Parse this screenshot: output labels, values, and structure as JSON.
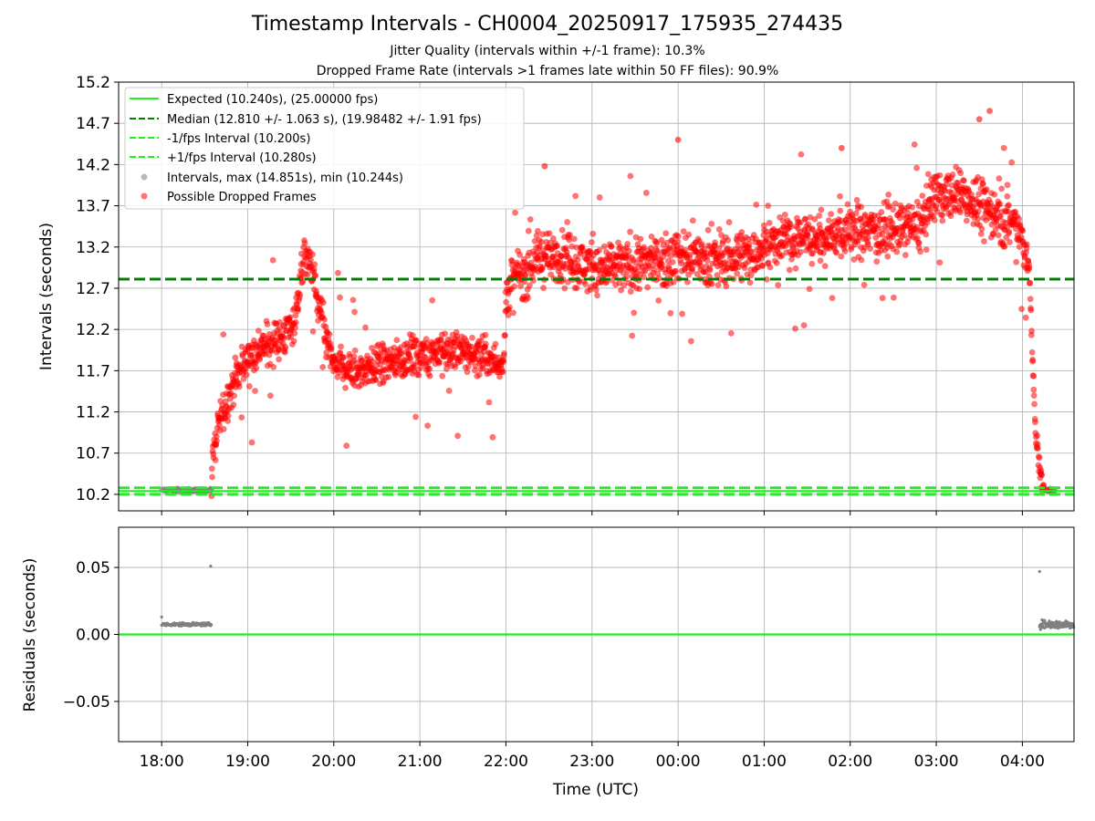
{
  "figure": {
    "title": "Timestamp Intervals - CH0004_20250917_175935_274435",
    "subtitle1": "Jitter Quality (intervals within +/-1 frame): 10.3%",
    "subtitle2": "Dropped Frame Rate (intervals >1 frames late within 50 FF files): 90.9%"
  },
  "chart_data": [
    {
      "type": "scatter",
      "panel": "intervals",
      "xlabel": "",
      "ylabel": "Intervals (seconds)",
      "xlim_hours": [
        17.5,
        28.6
      ],
      "ylim": [
        10.0,
        15.2
      ],
      "yticks": [
        "10.2",
        "10.7",
        "11.2",
        "11.7",
        "12.2",
        "12.7",
        "13.2",
        "13.7",
        "14.2",
        "14.7",
        "15.2"
      ],
      "grid": true,
      "legend_placement": "upper-left",
      "reference_lines": [
        {
          "name": "Expected (10.240s), (25.00000 fps)",
          "y": 10.24,
          "color": "#22ee22",
          "style": "solid"
        },
        {
          "name": "Median (12.810 +/- 1.063 s), (19.98482 +/- 1.91 fps)",
          "y": 12.81,
          "color": "#008000",
          "style": "dashed"
        },
        {
          "name": "-1/fps Interval (10.200s)",
          "y": 10.2,
          "color": "#22ee22",
          "style": "dashed"
        },
        {
          "name": "+1/fps Interval (10.280s)",
          "y": 10.28,
          "color": "#22ee22",
          "style": "dashed"
        }
      ],
      "series": [
        {
          "name": "Intervals, max (14.851s), min (10.244s)",
          "color": "#808080",
          "note": "normal intervals near 10.24 s",
          "segments": [
            {
              "x_start": 18.0,
              "x_end": 18.58,
              "y_mean": 10.25,
              "spread": 0.008
            },
            {
              "x_start": 28.28,
              "x_end": 28.38,
              "y_mean": 10.25,
              "spread": 0.008
            }
          ]
        },
        {
          "name": "Possible Dropped Frames",
          "color": "#ff0000",
          "trend_points": [
            [
              18.58,
              10.6
            ],
            [
              18.65,
              11.0
            ],
            [
              18.75,
              11.3
            ],
            [
              18.85,
              11.6
            ],
            [
              19.0,
              11.85
            ],
            [
              19.2,
              12.0
            ],
            [
              19.4,
              12.1
            ],
            [
              19.55,
              12.3
            ],
            [
              19.63,
              12.95
            ],
            [
              19.68,
              13.1
            ],
            [
              19.75,
              12.9
            ],
            [
              19.82,
              12.5
            ],
            [
              19.9,
              12.15
            ],
            [
              20.0,
              11.75
            ],
            [
              20.3,
              11.7
            ],
            [
              20.6,
              11.8
            ],
            [
              21.0,
              11.9
            ],
            [
              21.4,
              11.95
            ],
            [
              21.8,
              11.85
            ],
            [
              21.98,
              11.8
            ],
            [
              22.0,
              12.65
            ],
            [
              22.1,
              12.8
            ],
            [
              22.4,
              13.1
            ],
            [
              22.7,
              13.05
            ],
            [
              23.0,
              12.95
            ],
            [
              23.3,
              12.95
            ],
            [
              23.6,
              13.0
            ],
            [
              24.0,
              13.1
            ],
            [
              24.4,
              13.05
            ],
            [
              24.8,
              13.1
            ],
            [
              25.2,
              13.3
            ],
            [
              25.6,
              13.3
            ],
            [
              26.0,
              13.4
            ],
            [
              26.4,
              13.4
            ],
            [
              26.8,
              13.45
            ],
            [
              27.0,
              13.8
            ],
            [
              27.3,
              13.85
            ],
            [
              27.5,
              13.7
            ],
            [
              27.7,
              13.6
            ],
            [
              27.9,
              13.5
            ],
            [
              28.0,
              13.3
            ],
            [
              28.08,
              12.9
            ],
            [
              28.12,
              11.8
            ],
            [
              28.15,
              11.0
            ],
            [
              28.2,
              10.5
            ],
            [
              28.25,
              10.28
            ]
          ],
          "noise_amplitude": 0.2
        }
      ]
    },
    {
      "type": "scatter",
      "panel": "residuals",
      "xlabel": "Time (UTC)",
      "ylabel": "Residuals (seconds)",
      "xlim_hours": [
        17.5,
        28.6
      ],
      "ylim": [
        -0.08,
        0.08
      ],
      "yticks": [
        "0.05",
        "0.00",
        "−0.05"
      ],
      "xtick_hours": [
        18,
        19,
        20,
        21,
        22,
        23,
        24,
        25,
        26,
        27,
        28
      ],
      "xticks": [
        "18:00",
        "19:00",
        "20:00",
        "21:00",
        "22:00",
        "23:00",
        "00:00",
        "01:00",
        "02:00",
        "03:00",
        "04:00"
      ],
      "grid": true,
      "reference_lines": [
        {
          "name": "zero",
          "y": 0.0,
          "color": "#22ee22",
          "style": "solid"
        }
      ],
      "series": [
        {
          "name": "residuals",
          "color": "#808080",
          "segments": [
            {
              "x_start": 18.0,
              "x_end": 18.58,
              "y_mean": 0.0075,
              "spread": 0.0012
            },
            {
              "x_start": 28.2,
              "x_end": 28.6,
              "y_mean": 0.0075,
              "spread": 0.003
            }
          ],
          "outliers": [
            [
              18.0,
              0.013
            ],
            [
              18.57,
              0.051
            ],
            [
              28.2,
              0.047
            ]
          ]
        }
      ]
    }
  ]
}
